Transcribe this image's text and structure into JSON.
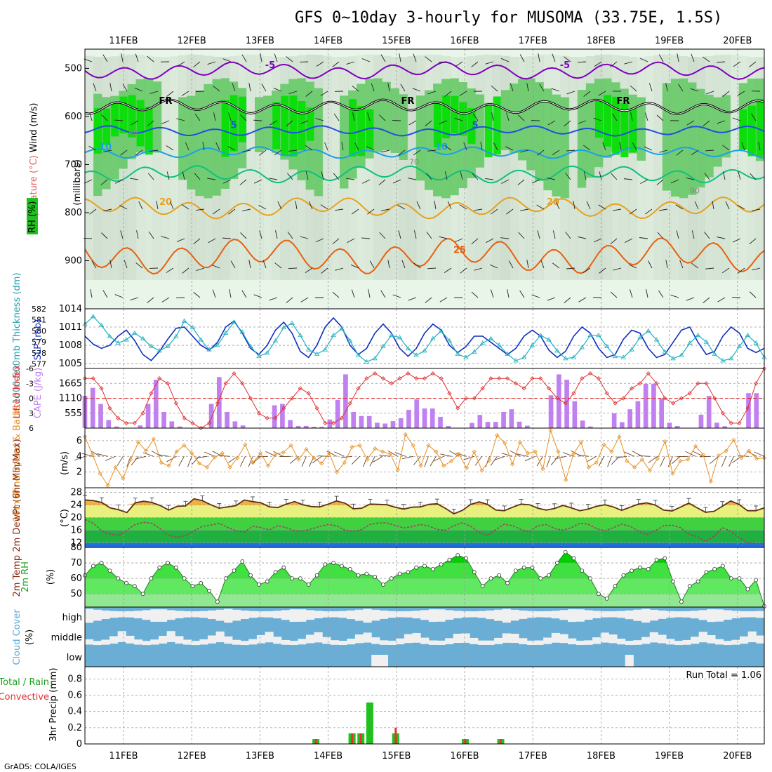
{
  "title": "GFS 0~10day 3-hourly for MUSOMA (33.75E, 1.5S)",
  "credit": "GrADS: COLA/IGES",
  "colors": {
    "rh_light": "#e8f5e8",
    "rh_mid": "#c8d8c8",
    "rh_dark": "#a8c0a8",
    "rh_green": "#60c860",
    "rh_bright": "#00e000",
    "t_purple": "#8000c0",
    "t_blue": "#1f4fe0",
    "t_lblue": "#1e9fe8",
    "t_teal": "#10c080",
    "t_orange": "#e8a020",
    "t_dorange": "#e86010",
    "slp": "#1030c0",
    "thick": "#20b0c0",
    "lifted": "#e03030",
    "cape": "#c080f0",
    "wind": "#e89020",
    "temp": "#603010",
    "dew": "#a04060",
    "cloud": "#6aaed6",
    "cloud_clear": "#f0f0f0",
    "precip_total": "#20c020",
    "precip_conv": "#f03030"
  },
  "chart_data": [
    {
      "type": "contour",
      "name": "vertical-profile",
      "x": [
        "11FEB",
        "12FEB",
        "13FEB",
        "14FEB",
        "15FEB",
        "16FEB",
        "17FEB",
        "18FEB",
        "19FEB",
        "20FEB"
      ],
      "ylabel": "(millibars)",
      "yticks": [
        500,
        600,
        700,
        800,
        900
      ],
      "ylim": [
        1000,
        460
      ],
      "legend_rh": "RH (%)",
      "label_temperature": "Temperature (°C)",
      "label_wind": "Wind (m/s)",
      "series_labels": [
        {
          "name": "T -5C",
          "value": "-5"
        },
        {
          "name": "T 0C",
          "value": "FR"
        },
        {
          "name": "T 5C",
          "value": "5"
        },
        {
          "name": "T 10C",
          "value": "10"
        },
        {
          "name": "T 20C",
          "value": "20"
        },
        {
          "name": "T 25C",
          "value": "25"
        }
      ],
      "rh_labels": [
        "50",
        "70",
        "90"
      ]
    },
    {
      "type": "line",
      "name": "slp-thickness",
      "ylabel_left": "1000-500mb Thickness (dm)",
      "ylabel_right": "SLP (mb)",
      "yticks_left": [
        577,
        578,
        579,
        580,
        581,
        582
      ],
      "yticks_right": [
        1005,
        1008,
        1011,
        1014
      ],
      "ylim_left": [
        576.6,
        582
      ],
      "ylim_right": [
        1004.2,
        1014
      ],
      "series": [
        {
          "name": "SLP",
          "values": [
            1009.5,
            1008.2,
            1007.5,
            1008.0,
            1009.5,
            1010.5,
            1008.8,
            1006.5,
            1005.5,
            1007.0,
            1009.0,
            1010.8,
            1011.0,
            1009.5,
            1008.0,
            1007.2,
            1008.5,
            1011.0,
            1012.0,
            1010.0,
            1007.5,
            1006.5,
            1008.0,
            1010.5,
            1011.8,
            1010.0,
            1007.0,
            1006.0,
            1008.0,
            1011.0,
            1012.5,
            1011.0,
            1008.0,
            1006.5,
            1007.5,
            1010.0,
            1011.5,
            1010.0,
            1007.5,
            1006.2,
            1007.5,
            1010.0,
            1011.5,
            1010.5,
            1008.0,
            1006.8,
            1007.8,
            1009.5,
            1009.5,
            1008.5,
            1007.5,
            1006.5,
            1007.5,
            1009.5,
            1010.5,
            1009.5,
            1007.2,
            1006.0,
            1007.0,
            1009.5,
            1011.0,
            1010.0,
            1007.5,
            1006.0,
            1006.5,
            1009.0,
            1010.5,
            1010.0,
            1007.5,
            1006.0,
            1006.5,
            1008.5,
            1010.5,
            1011.0,
            1008.5,
            1006.5,
            1007.0,
            1009.5,
            1011.0,
            1010.0,
            1007.5,
            1006.8,
            1007.5
          ]
        },
        {
          "name": "Thickness",
          "values": [
            580.6,
            581.3,
            580.5,
            579.5,
            578.9,
            579.2,
            579.8,
            579.3,
            578.6,
            578.2,
            578.6,
            579.5,
            580.9,
            580.3,
            579.2,
            578.3,
            578.7,
            579.8,
            580.8,
            579.9,
            578.6,
            577.7,
            578.0,
            579.1,
            580.3,
            580.7,
            579.6,
            578.3,
            577.9,
            578.3,
            579.6,
            580.2,
            579.1,
            577.8,
            577.2,
            577.5,
            578.6,
            579.6,
            579.4,
            578.4,
            577.8,
            578.2,
            579.3,
            580.0,
            579.1,
            577.9,
            577.6,
            578.1,
            578.9,
            579.3,
            578.7,
            577.9,
            577.3,
            577.6,
            578.7,
            579.6,
            579.2,
            578.2,
            577.5,
            577.6,
            578.5,
            579.6,
            579.6,
            578.6,
            577.7,
            577.6,
            578.3,
            579.4,
            580.0,
            579.2,
            578.1,
            577.5,
            577.8,
            578.9,
            579.6,
            579.0,
            577.9,
            577.3,
            577.5,
            578.6,
            579.6,
            578.9,
            577.6
          ]
        }
      ]
    },
    {
      "type": "bar-line",
      "name": "lifted-index-cape",
      "ylabel_left": "Lifted Index",
      "ylabel_right": "CAPE (J/kg)",
      "yticks_left": [
        "-6",
        "-3",
        "0",
        "3",
        "6"
      ],
      "yticks_right": [
        555,
        1110,
        1665
      ],
      "ylim_lifted": [
        6,
        -6
      ],
      "ylim_cape": [
        0,
        2220
      ],
      "series": [
        {
          "name": "CAPE",
          "values": [
            1200,
            1500,
            900,
            300,
            60,
            0,
            0,
            100,
            900,
            1800,
            600,
            250,
            60,
            0,
            0,
            30,
            900,
            1900,
            600,
            250,
            100,
            0,
            0,
            0,
            850,
            900,
            300,
            80,
            80,
            50,
            50,
            320,
            1050,
            2000,
            600,
            450,
            450,
            200,
            170,
            260,
            370,
            680,
            1070,
            730,
            730,
            420,
            80,
            0,
            0,
            190,
            490,
            230,
            230,
            600,
            700,
            240,
            90,
            0,
            0,
            1220,
            2000,
            1800,
            1000,
            280,
            60,
            0,
            0,
            550,
            220,
            700,
            1000,
            1650,
            1650,
            1100,
            200,
            80,
            0,
            0,
            500,
            1200,
            200,
            70,
            0,
            0,
            1300,
            1300,
            0
          ]
        },
        {
          "name": "Lifted Index",
          "values": [
            -4.0,
            -4.0,
            -2.0,
            2.0,
            4.0,
            5.0,
            5.0,
            3.0,
            -1.0,
            -4.0,
            -3.0,
            1.0,
            4.0,
            5.0,
            6.0,
            5.0,
            1.0,
            -3.0,
            -5.0,
            -3.0,
            0.0,
            3.0,
            4.0,
            4.0,
            2.0,
            0.0,
            -2.0,
            -1.0,
            2.0,
            5.0,
            5.0,
            4.0,
            1.0,
            -2.0,
            -4.0,
            -5.0,
            -4.0,
            -3.0,
            -4.0,
            -5.0,
            -4.0,
            -4.0,
            -5.0,
            -4.0,
            -1.0,
            2.0,
            0.0,
            0.0,
            -2.0,
            -4.0,
            -4.0,
            -4.0,
            -3.0,
            -2.0,
            -4.0,
            -4.0,
            -2.0,
            0.0,
            1.0,
            -1.0,
            -4.0,
            -5.0,
            -4.0,
            -1.0,
            1.0,
            0.0,
            -2.0,
            -3.0,
            -5.0,
            -3.0,
            0.0,
            1.0,
            0.0,
            -1.0,
            -3.0,
            -3.0,
            0.0,
            3.0,
            5.0,
            5.0,
            2.0,
            -3.0,
            -6.0
          ]
        }
      ]
    },
    {
      "type": "line",
      "name": "10m-wind",
      "ylabel": "10m Wind Speed & Barbs",
      "yunit": "(m/s)",
      "yticks": [
        2,
        4,
        6
      ],
      "ylim": [
        0,
        7.6
      ],
      "series": [
        {
          "name": "Wind Speed",
          "values": [
            6.5,
            4.2,
            1.8,
            0.3,
            2.6,
            1.2,
            3.6,
            5.8,
            4.7,
            6.2,
            3.2,
            2.8,
            4.6,
            5.4,
            4.4,
            3.1,
            2.6,
            3.9,
            4.4,
            2.6,
            3.8,
            5.5,
            3.2,
            4.4,
            2.8,
            4.3,
            4.5,
            5.4,
            3.6,
            4.9,
            3.8,
            3.1,
            4.4,
            2.0,
            3.2,
            5.2,
            5.4,
            3.6,
            5.0,
            4.6,
            4.3,
            2.3,
            6.8,
            5.4,
            2.8,
            5.4,
            4.6,
            2.8,
            3.4,
            4.3,
            2.5,
            4.6,
            2.2,
            3.5,
            6.7,
            5.7,
            3.0,
            5.8,
            4.4,
            4.6,
            2.4,
            7.3,
            4.6,
            1.0,
            4.3,
            5.8,
            2.6,
            3.2,
            5.5,
            4.6,
            6.5,
            3.4,
            2.6,
            3.6,
            2.2,
            3.7,
            5.9,
            1.8,
            3.4,
            3.6,
            5.3,
            4.2,
            0.8,
            4.1,
            4.7,
            6.1,
            3.8,
            4.7,
            3.7,
            3.8
          ]
        }
      ]
    },
    {
      "type": "line",
      "name": "2m-temp-dewpt",
      "ylabel": "2m Temp 2m DewPt (6hr Min/Max)",
      "yunit": "(°C)",
      "yticks": [
        12,
        16,
        20,
        24,
        28
      ],
      "ylim": [
        10.5,
        29.5
      ],
      "series": [
        {
          "name": "2m Temp",
          "values": [
            25.6,
            25.4,
            24.8,
            23.1,
            22.5,
            21.6,
            24.7,
            25.2,
            24.8,
            23.8,
            22.4,
            23.6,
            23.7,
            26.0,
            25.4,
            24.1,
            23.0,
            23.4,
            23.8,
            25.6,
            25.1,
            24.7,
            23.4,
            23.2,
            24.3,
            25.1,
            24.1,
            23.5,
            23.4,
            24.3,
            25.3,
            24.6,
            22.8,
            23.0,
            24.3,
            24.2,
            24.1,
            23.3,
            22.7,
            23.3,
            23.4,
            24.2,
            24.4,
            22.9,
            21.2,
            22.3,
            24.2,
            25.0,
            24.2,
            22.4,
            22.2,
            23.3,
            24.3,
            24.1,
            23.0,
            22.4,
            22.9,
            23.9,
            23.1,
            22.2,
            22.7,
            23.6,
            24.1,
            23.4,
            22.3,
            23.3,
            24.3,
            24.7,
            24.0,
            22.4,
            22.1,
            23.3,
            24.6,
            23.1,
            21.7,
            22.0,
            23.6,
            25.3,
            24.2,
            22.2,
            22.2,
            23.1
          ]
        },
        {
          "name": "2m DewPt",
          "values": [
            19.4,
            18.2,
            15.8,
            14.8,
            14.3,
            16.0,
            17.8,
            18.5,
            18.2,
            16.4,
            14.3,
            13.7,
            14.3,
            15.8,
            17.2,
            17.6,
            18.2,
            16.9,
            15.8,
            15.4,
            17.2,
            16.8,
            16.1,
            17.4,
            16.8,
            15.8,
            15.7,
            16.4,
            17.2,
            17.8,
            17.4,
            16.0,
            15.6,
            16.2,
            17.8,
            18.3,
            18.3,
            17.5,
            16.7,
            17.1,
            17.8,
            17.3,
            16.2,
            16.0,
            17.4,
            18.4,
            17.2,
            15.3,
            14.3,
            16.2,
            17.9,
            17.4,
            16.2,
            15.5,
            17.4,
            17.8,
            16.5,
            16.0,
            16.8,
            18.2,
            17.9,
            16.5,
            15.8,
            16.8,
            17.9,
            17.2,
            15.7,
            14.6,
            15.8,
            17.4,
            17.6,
            16.8,
            14.7,
            13.9,
            12.4,
            14.0,
            16.8,
            15.7,
            13.6,
            12.0,
            11.8,
            11.6
          ]
        }
      ]
    },
    {
      "type": "area",
      "name": "2m-rh",
      "ylabel": "2m RH",
      "yunit": "(%)",
      "yticks": [
        50,
        60,
        70,
        80
      ],
      "ylim": [
        41.5,
        80
      ],
      "series": [
        {
          "name": "2m RH",
          "values": [
            62,
            68,
            70,
            65,
            60,
            57,
            55,
            50,
            60,
            67,
            70,
            67,
            60,
            55,
            57,
            52,
            45,
            60,
            65,
            71,
            62,
            56,
            58,
            64,
            67,
            60,
            60,
            56,
            62,
            69,
            70,
            68,
            66,
            62,
            63,
            61,
            56,
            60,
            63,
            64,
            67,
            68,
            66,
            69,
            72,
            75,
            73,
            64,
            55,
            60,
            62,
            57,
            65,
            67,
            67,
            60,
            62,
            70,
            77,
            73,
            65,
            60,
            50,
            47,
            55,
            62,
            65,
            67,
            66,
            72,
            73,
            58,
            45,
            55,
            58,
            64,
            66,
            68,
            60,
            60,
            53,
            59,
            42
          ]
        }
      ]
    },
    {
      "type": "heatmap",
      "name": "cloud-cover",
      "ylabel": "Cloud Cover",
      "yunit": "(%)",
      "rows": [
        "high",
        "middle",
        "low"
      ]
    },
    {
      "type": "bar",
      "name": "precip",
      "ylabel": "3hr Precip (mm)",
      "legend": [
        "Total / Rain",
        "Convective"
      ],
      "annotation": "Run Total = 1.06",
      "yticks": [
        0,
        0.2,
        0.4,
        0.6,
        0.8
      ],
      "ylim": [
        0,
        0.95
      ],
      "series": [
        {
          "name": "Total",
          "points": [
            [
              3.82,
              0.06
            ],
            [
              4.35,
              0.13
            ],
            [
              4.48,
              0.13
            ],
            [
              4.61,
              0.51
            ],
            [
              4.99,
              0.13
            ],
            [
              6.01,
              0.06
            ],
            [
              6.53,
              0.06
            ]
          ]
        },
        {
          "name": "Convective",
          "points": [
            [
              3.82,
              0.06
            ],
            [
              4.35,
              0.13
            ],
            [
              4.48,
              0.13
            ],
            [
              4.99,
              0.2
            ],
            [
              6.01,
              0.06
            ],
            [
              6.53,
              0.06
            ]
          ]
        }
      ]
    }
  ]
}
